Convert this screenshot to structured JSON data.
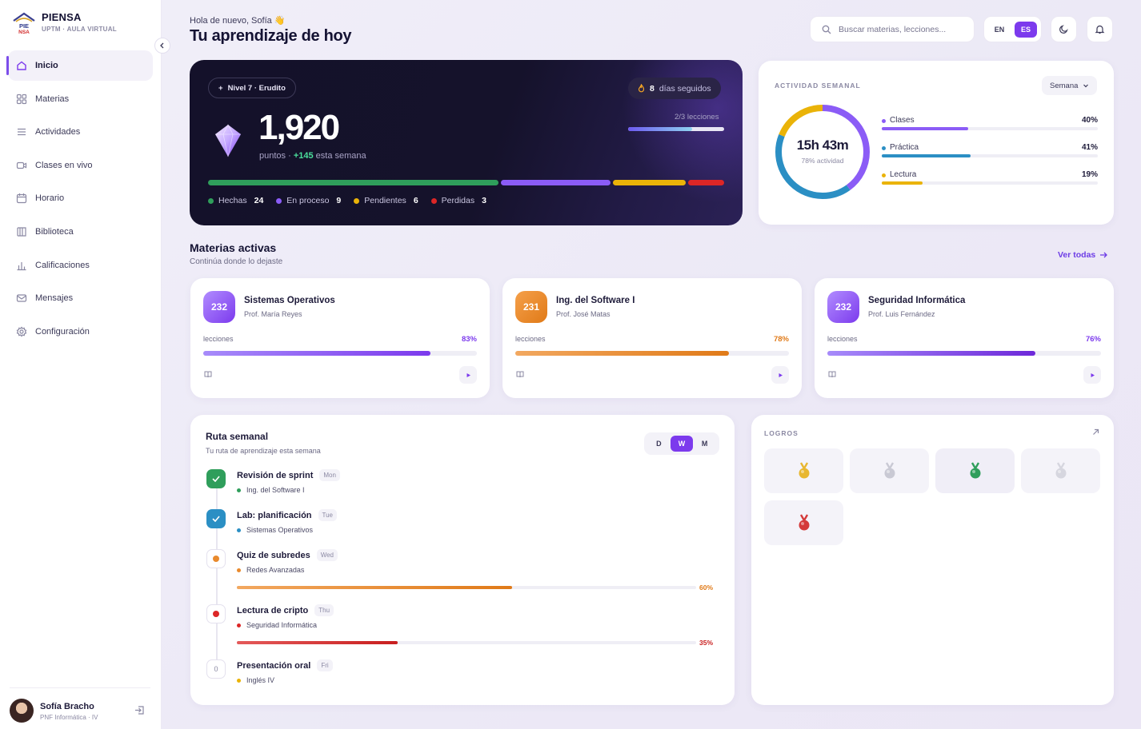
{
  "brand": {
    "name": "PIENSA",
    "subtitle": "UPTM · AULA VIRTUAL"
  },
  "nav": [
    {
      "label": "Inicio",
      "icon": "home-icon",
      "active": true
    },
    {
      "label": "Materias",
      "icon": "grid-icon"
    },
    {
      "label": "Actividades",
      "icon": "list-icon"
    },
    {
      "label": "Clases en vivo",
      "icon": "video-icon"
    },
    {
      "label": "Horario",
      "icon": "calendar-icon"
    },
    {
      "label": "Biblioteca",
      "icon": "library-icon"
    },
    {
      "label": "Calificaciones",
      "icon": "bar-chart-icon"
    },
    {
      "label": "Mensajes",
      "icon": "mail-icon"
    },
    {
      "label": "Configuración",
      "icon": "gear-icon"
    }
  ],
  "user": {
    "name": "Sofía Bracho",
    "role": "PNF Informática · IV"
  },
  "header": {
    "greeting": "Hola de nuevo, Sofía 👋",
    "title": "Tu aprendizaje de hoy",
    "search_placeholder": "Buscar materias, lecciones...",
    "lang_en": "EN",
    "lang_es": "ES"
  },
  "hero": {
    "level": "Nivel 7 · Erudito",
    "streak_count": "8",
    "streak_label": "días seguidos",
    "points": "1,920",
    "points_label": "puntos ·",
    "points_delta": "+145",
    "points_suffix": "esta semana",
    "lessons": "2/3 lecciones",
    "lessons_progress": 0.67,
    "status": [
      {
        "label": "Hechas",
        "value": 24,
        "color": "#2f9e5b"
      },
      {
        "label": "En proceso",
        "value": 9,
        "color": "#8b5cf6"
      },
      {
        "label": "Pendientes",
        "value": 6,
        "color": "#eab308"
      },
      {
        "label": "Perdidas",
        "value": 3,
        "color": "#dc2626"
      }
    ]
  },
  "activity": {
    "caption": "ACTIVIDAD SEMANAL",
    "period": "Semana",
    "total": "15h 43m",
    "total_label": "78% actividad",
    "rows": [
      {
        "label": "Clases",
        "pct": "40%",
        "value": 0.4,
        "color": "#8b5cf6"
      },
      {
        "label": "Práctica",
        "pct": "41%",
        "value": 0.41,
        "color": "#2b8fc4"
      },
      {
        "label": "Lectura",
        "pct": "19%",
        "value": 0.19,
        "color": "#eab308"
      }
    ]
  },
  "subjects_section": {
    "title": "Materias activas",
    "subtitle": "Continúa donde lo dejaste",
    "see_all": "Ver todas"
  },
  "subjects": [
    {
      "code": "232",
      "name": "Sistemas Operativos",
      "prof": "Prof. María Reyes",
      "label": "lecciones",
      "pct": "83%",
      "value": 0.83,
      "color": "#8b5cf6"
    },
    {
      "code": "231",
      "name": "Ing. del Software I",
      "prof": "Prof. José Matas",
      "label": "lecciones",
      "pct": "78%",
      "value": 0.78,
      "color": "#e98a2d"
    },
    {
      "code": "232",
      "name": "Seguridad Informática",
      "prof": "Prof. Luis Fernández",
      "label": "lecciones",
      "pct": "76%",
      "value": 0.76,
      "color": "#8b5cf6"
    }
  ],
  "route": {
    "title": "Ruta semanal",
    "subtitle": "Tu ruta de aprendizaje esta semana",
    "tabs": [
      "D",
      "W",
      "M"
    ],
    "active_tab": "W",
    "items": [
      {
        "title": "Revisión de sprint",
        "day": "Mon",
        "subject": "Ing. del Software I",
        "state": "done",
        "color": "#2f9e5b"
      },
      {
        "title": "Lab: planificación",
        "day": "Tue",
        "subject": "Sistemas Operativos",
        "state": "done",
        "color": "#2b8fc4"
      },
      {
        "title": "Quiz de subredes",
        "day": "Wed",
        "subject": "Redes Avanzadas",
        "state": "progress",
        "color": "#e98a2d",
        "pct": "60%",
        "value": 0.6
      },
      {
        "title": "Lectura de cripto",
        "day": "Thu",
        "subject": "Seguridad Informática",
        "state": "progress",
        "color": "#dc2626",
        "pct": "35%",
        "value": 0.35
      },
      {
        "title": "Presentación oral",
        "day": "Fri",
        "subject": "Inglés IV",
        "state": "pending",
        "color": "#eab308",
        "marker": "0"
      }
    ]
  },
  "achievements": {
    "caption": "LOGROS",
    "medals": [
      {
        "icon": "gold-medal-icon",
        "color": "#e8b730"
      },
      {
        "icon": "silver-medal-icon",
        "color": "#c9c9d4"
      },
      {
        "icon": "green-medal-icon",
        "color": "#2f9e5b"
      },
      {
        "icon": "silver-medal-icon",
        "color": "#d6d6df"
      },
      {
        "icon": "red-medal-icon",
        "color": "#d43a3a"
      }
    ]
  }
}
